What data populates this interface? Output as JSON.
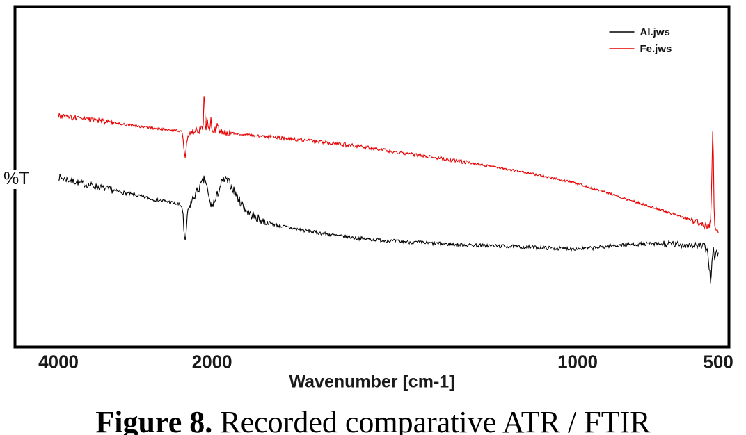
{
  "figure_caption": {
    "bold": "Figure 8.",
    "rest": " Recorded comparative ATR / FTIR"
  },
  "chart_data": {
    "type": "line",
    "title": "",
    "x_axis": {
      "label": "Wavenumber [cm-1]",
      "direction": "decreasing",
      "ticks": [
        {
          "label": "4000",
          "wn": 4000
        },
        {
          "label": "2000",
          "wn": 2000
        },
        {
          "label": "1000",
          "wn": 1000
        },
        {
          "label": "500",
          "wn": 500
        }
      ],
      "scale_map": [
        {
          "wn": 4000,
          "frac": 0.061
        },
        {
          "wn": 2000,
          "frac": 0.276
        },
        {
          "wn": 1000,
          "frac": 0.788
        },
        {
          "wn": 500,
          "frac": 0.985
        }
      ]
    },
    "y_axis": {
      "label": "%T",
      "units": "relative transmittance (axis unlabeled)",
      "range": [
        0,
        100
      ],
      "ticks_visible": false
    },
    "legend": {
      "position": "top-right"
    },
    "series": [
      {
        "name": "Al.jws",
        "color": "#000000",
        "width": 1.1,
        "noise": 0.55,
        "noise_zones": [
          {
            "from": 4000,
            "to": 3300,
            "amp": 1.0
          },
          {
            "from": 2350,
            "to": 1850,
            "amp": 1.3
          },
          {
            "from": 700,
            "to": 500,
            "amp": 1.1
          }
        ],
        "points": [
          [
            4000,
            50
          ],
          [
            3950,
            49.6
          ],
          [
            3900,
            49.3
          ],
          [
            3850,
            49.0
          ],
          [
            3800,
            48.7
          ],
          [
            3700,
            48.1
          ],
          [
            3600,
            47.6
          ],
          [
            3500,
            47.1
          ],
          [
            3400,
            46.6
          ],
          [
            3300,
            46.1
          ],
          [
            3200,
            45.6
          ],
          [
            3100,
            45.1
          ],
          [
            3000,
            44.6
          ],
          [
            2900,
            44.1
          ],
          [
            2800,
            43.6
          ],
          [
            2700,
            43.2
          ],
          [
            2600,
            42.8
          ],
          [
            2500,
            42.3
          ],
          [
            2450,
            42.0
          ],
          [
            2400,
            41.5
          ],
          [
            2380,
            40.0
          ],
          [
            2365,
            33.0
          ],
          [
            2350,
            30.5
          ],
          [
            2340,
            33.0
          ],
          [
            2325,
            38.0
          ],
          [
            2300,
            41.0
          ],
          [
            2270,
            42.5
          ],
          [
            2240,
            44.0
          ],
          [
            2200,
            45.5
          ],
          [
            2160,
            47.0
          ],
          [
            2120,
            48.5
          ],
          [
            2100,
            49.3
          ],
          [
            2080,
            48.5
          ],
          [
            2060,
            46.0
          ],
          [
            2040,
            43.5
          ],
          [
            2020,
            42.0
          ],
          [
            2010,
            41.5
          ],
          [
            2000,
            41.8
          ],
          [
            1990,
            43.0
          ],
          [
            1985,
            45.0
          ],
          [
            1975,
            48.0
          ],
          [
            1965,
            49.3
          ],
          [
            1955,
            48.5
          ],
          [
            1945,
            47.0
          ],
          [
            1935,
            45.0
          ],
          [
            1925,
            43.0
          ],
          [
            1915,
            41.5
          ],
          [
            1905,
            40.0
          ],
          [
            1895,
            39.0
          ],
          [
            1880,
            38.0
          ],
          [
            1860,
            37.0
          ],
          [
            1840,
            36.3
          ],
          [
            1820,
            35.8
          ],
          [
            1800,
            35.3
          ],
          [
            1750,
            34.3
          ],
          [
            1700,
            33.4
          ],
          [
            1650,
            32.6
          ],
          [
            1600,
            32.0
          ],
          [
            1550,
            31.5
          ],
          [
            1500,
            31.1
          ],
          [
            1450,
            30.8
          ],
          [
            1400,
            30.5
          ],
          [
            1350,
            30.2
          ],
          [
            1300,
            30.0
          ],
          [
            1250,
            29.8
          ],
          [
            1200,
            29.6
          ],
          [
            1150,
            29.4
          ],
          [
            1100,
            29.2
          ],
          [
            1050,
            29.0
          ],
          [
            1000,
            28.9
          ],
          [
            960,
            29.0
          ],
          [
            920,
            29.3
          ],
          [
            880,
            29.7
          ],
          [
            840,
            30.0
          ],
          [
            800,
            30.2
          ],
          [
            760,
            30.3
          ],
          [
            720,
            30.3
          ],
          [
            680,
            30.2
          ],
          [
            640,
            30.1
          ],
          [
            600,
            30.0
          ],
          [
            570,
            29.8
          ],
          [
            550,
            29.5
          ],
          [
            540,
            28.5
          ],
          [
            535,
            26.0
          ],
          [
            530,
            22.0
          ],
          [
            527,
            19.0
          ],
          [
            524,
            23.0
          ],
          [
            521,
            27.0
          ],
          [
            518,
            29.0
          ],
          [
            515,
            27.5
          ],
          [
            512,
            25.0
          ],
          [
            509,
            27.0
          ],
          [
            506,
            28.5
          ],
          [
            503,
            27.0
          ],
          [
            500,
            28.0
          ]
        ]
      },
      {
        "name": "Fe.jws",
        "color": "#e60000",
        "width": 1.1,
        "noise": 0.35,
        "noise_zones": [
          {
            "from": 4000,
            "to": 3300,
            "amp": 0.8
          },
          {
            "from": 2350,
            "to": 1950,
            "amp": 1.0
          },
          {
            "from": 1850,
            "to": 1300,
            "amp": 0.55
          },
          {
            "from": 600,
            "to": 500,
            "amp": 1.0
          }
        ],
        "points": [
          [
            4000,
            68.0
          ],
          [
            3950,
            67.8
          ],
          [
            3900,
            67.7
          ],
          [
            3850,
            67.5
          ],
          [
            3800,
            67.4
          ],
          [
            3700,
            67.1
          ],
          [
            3600,
            66.8
          ],
          [
            3500,
            66.5
          ],
          [
            3400,
            66.2
          ],
          [
            3300,
            65.9
          ],
          [
            3200,
            65.6
          ],
          [
            3100,
            65.3
          ],
          [
            3000,
            65.0
          ],
          [
            2900,
            64.7
          ],
          [
            2800,
            64.4
          ],
          [
            2700,
            64.1
          ],
          [
            2600,
            63.9
          ],
          [
            2500,
            63.7
          ],
          [
            2450,
            63.6
          ],
          [
            2400,
            63.5
          ],
          [
            2380,
            62.0
          ],
          [
            2365,
            58.0
          ],
          [
            2350,
            55.5
          ],
          [
            2340,
            58.0
          ],
          [
            2325,
            61.0
          ],
          [
            2300,
            62.5
          ],
          [
            2270,
            63.0
          ],
          [
            2240,
            63.3
          ],
          [
            2200,
            63.5
          ],
          [
            2150,
            63.8
          ],
          [
            2120,
            64.5
          ],
          [
            2110,
            68.0
          ],
          [
            2105,
            73.0
          ],
          [
            2100,
            76.0
          ],
          [
            2095,
            70.0
          ],
          [
            2090,
            65.0
          ],
          [
            2080,
            64.0
          ],
          [
            2070,
            67.0
          ],
          [
            2065,
            71.0
          ],
          [
            2060,
            66.0
          ],
          [
            2050,
            64.0
          ],
          [
            2040,
            63.8
          ],
          [
            2020,
            64.5
          ],
          [
            2015,
            67.0
          ],
          [
            2010,
            64.0
          ],
          [
            2000,
            63.5
          ],
          [
            1990,
            64.0
          ],
          [
            1985,
            66.5
          ],
          [
            1980,
            63.5
          ],
          [
            1960,
            63.0
          ],
          [
            1940,
            62.8
          ],
          [
            1920,
            62.5
          ],
          [
            1900,
            62.3
          ],
          [
            1850,
            61.8
          ],
          [
            1800,
            61.3
          ],
          [
            1750,
            60.8
          ],
          [
            1700,
            60.2
          ],
          [
            1650,
            59.6
          ],
          [
            1600,
            59.0
          ],
          [
            1550,
            58.2
          ],
          [
            1500,
            57.4
          ],
          [
            1450,
            56.6
          ],
          [
            1400,
            55.8
          ],
          [
            1350,
            55.0
          ],
          [
            1300,
            54.2
          ],
          [
            1250,
            53.3
          ],
          [
            1200,
            52.4
          ],
          [
            1150,
            51.4
          ],
          [
            1100,
            50.4
          ],
          [
            1050,
            49.2
          ],
          [
            1000,
            48.0
          ],
          [
            950,
            46.7
          ],
          [
            900,
            45.4
          ],
          [
            850,
            44.1
          ],
          [
            800,
            42.8
          ],
          [
            750,
            41.5
          ],
          [
            700,
            40.2
          ],
          [
            650,
            38.8
          ],
          [
            600,
            37.4
          ],
          [
            580,
            36.8
          ],
          [
            560,
            36.2
          ],
          [
            545,
            35.6
          ],
          [
            535,
            35.2
          ],
          [
            528,
            36.0
          ],
          [
            524,
            45.0
          ],
          [
            521,
            60.0
          ],
          [
            519,
            66.0
          ],
          [
            517,
            55.0
          ],
          [
            515,
            42.0
          ],
          [
            513,
            36.0
          ],
          [
            510,
            34.0
          ],
          [
            507,
            35.5
          ],
          [
            504,
            33.5
          ],
          [
            502,
            35.0
          ],
          [
            500,
            34.0
          ]
        ]
      }
    ]
  }
}
